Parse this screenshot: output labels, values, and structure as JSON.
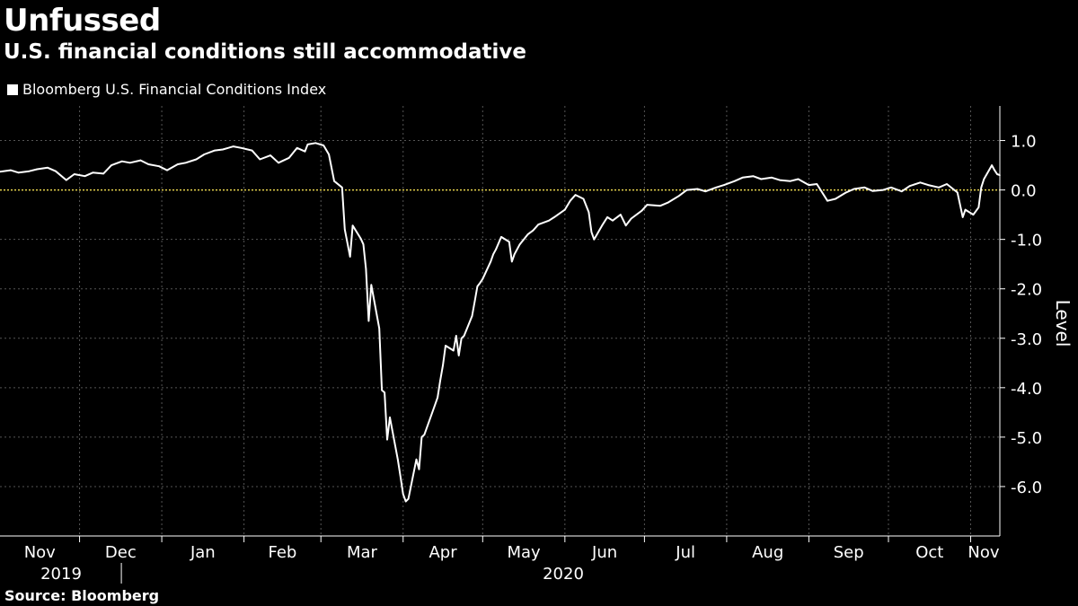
{
  "header": {
    "title": "Unfussed",
    "subtitle": "U.S. financial conditions still accommodative"
  },
  "legend": {
    "label": "Bloomberg U.S. Financial Conditions Index"
  },
  "footer": {
    "source": "Source: Bloomberg"
  },
  "colors": {
    "background": "#000000",
    "line": "#ffffff",
    "zero_line": "#e8d44d",
    "grid": "#555555"
  },
  "chart_data": {
    "type": "line",
    "title": "Unfussed",
    "subtitle": "U.S. financial conditions still accommodative",
    "ylabel": "Level",
    "ylim": [
      -7.0,
      1.7
    ],
    "yticks": [
      1.0,
      0.0,
      -1.0,
      -2.0,
      -3.0,
      -4.0,
      -5.0,
      -6.0
    ],
    "ytick_labels": [
      "1.0",
      "0.0",
      "-1.0",
      "-2.0",
      "-3.0",
      "-4.0",
      "-5.0",
      "-6.0"
    ],
    "x_months": [
      "Nov",
      "Dec",
      "Jan",
      "Feb",
      "Mar",
      "Apr",
      "May",
      "Jun",
      "Jul",
      "Aug",
      "Sep",
      "Oct",
      "Nov"
    ],
    "x_years": [
      "2019",
      "2020"
    ],
    "x_range": [
      "2019-11-01",
      "2020-11-12"
    ],
    "legend_position": "top-left",
    "grid": true,
    "reference_line": {
      "y": 0.0,
      "style": "dotted"
    },
    "series": [
      {
        "name": "Bloomberg U.S. Financial Conditions Index",
        "points": [
          [
            "2019-11-01",
            0.37
          ],
          [
            "2019-11-05",
            0.4
          ],
          [
            "2019-11-08",
            0.35
          ],
          [
            "2019-11-12",
            0.38
          ],
          [
            "2019-11-15",
            0.42
          ],
          [
            "2019-11-19",
            0.45
          ],
          [
            "2019-11-22",
            0.38
          ],
          [
            "2019-11-26",
            0.2
          ],
          [
            "2019-11-29",
            0.32
          ],
          [
            "2019-12-03",
            0.28
          ],
          [
            "2019-12-06",
            0.35
          ],
          [
            "2019-12-10",
            0.33
          ],
          [
            "2019-12-13",
            0.5
          ],
          [
            "2019-12-17",
            0.58
          ],
          [
            "2019-12-20",
            0.55
          ],
          [
            "2019-12-24",
            0.6
          ],
          [
            "2019-12-27",
            0.52
          ],
          [
            "2019-12-31",
            0.48
          ],
          [
            "2020-01-03",
            0.4
          ],
          [
            "2020-01-07",
            0.52
          ],
          [
            "2020-01-10",
            0.55
          ],
          [
            "2020-01-14",
            0.62
          ],
          [
            "2020-01-17",
            0.72
          ],
          [
            "2020-01-21",
            0.8
          ],
          [
            "2020-01-24",
            0.82
          ],
          [
            "2020-01-28",
            0.88
          ],
          [
            "2020-01-31",
            0.85
          ],
          [
            "2020-02-04",
            0.8
          ],
          [
            "2020-02-07",
            0.62
          ],
          [
            "2020-02-11",
            0.7
          ],
          [
            "2020-02-14",
            0.55
          ],
          [
            "2020-02-18",
            0.65
          ],
          [
            "2020-02-21",
            0.85
          ],
          [
            "2020-02-24",
            0.78
          ],
          [
            "2020-02-25",
            0.92
          ],
          [
            "2020-02-28",
            0.95
          ],
          [
            "2020-03-02",
            0.9
          ],
          [
            "2020-03-04",
            0.72
          ],
          [
            "2020-03-06",
            0.18
          ],
          [
            "2020-03-09",
            0.05
          ],
          [
            "2020-03-10",
            -0.8
          ],
          [
            "2020-03-12",
            -1.35
          ],
          [
            "2020-03-13",
            -0.72
          ],
          [
            "2020-03-16",
            -0.98
          ],
          [
            "2020-03-17",
            -1.1
          ],
          [
            "2020-03-18",
            -1.6
          ],
          [
            "2020-03-19",
            -2.65
          ],
          [
            "2020-03-20",
            -1.92
          ],
          [
            "2020-03-23",
            -2.8
          ],
          [
            "2020-03-24",
            -4.05
          ],
          [
            "2020-03-25",
            -4.1
          ],
          [
            "2020-03-26",
            -5.05
          ],
          [
            "2020-03-27",
            -4.6
          ],
          [
            "2020-03-30",
            -5.45
          ],
          [
            "2020-03-31",
            -5.8
          ],
          [
            "2020-04-01",
            -6.15
          ],
          [
            "2020-04-02",
            -6.3
          ],
          [
            "2020-04-03",
            -6.25
          ],
          [
            "2020-04-06",
            -5.45
          ],
          [
            "2020-04-07",
            -5.65
          ],
          [
            "2020-04-08",
            -5.0
          ],
          [
            "2020-04-09",
            -4.95
          ],
          [
            "2020-04-13",
            -4.35
          ],
          [
            "2020-04-14",
            -4.2
          ],
          [
            "2020-04-15",
            -3.85
          ],
          [
            "2020-04-16",
            -3.55
          ],
          [
            "2020-04-17",
            -3.15
          ],
          [
            "2020-04-20",
            -3.25
          ],
          [
            "2020-04-21",
            -2.95
          ],
          [
            "2020-04-22",
            -3.35
          ],
          [
            "2020-04-23",
            -3.0
          ],
          [
            "2020-04-24",
            -2.95
          ],
          [
            "2020-04-27",
            -2.55
          ],
          [
            "2020-04-28",
            -2.25
          ],
          [
            "2020-04-29",
            -1.95
          ],
          [
            "2020-04-30",
            -1.88
          ],
          [
            "2020-05-01",
            -1.8
          ],
          [
            "2020-05-04",
            -1.45
          ],
          [
            "2020-05-05",
            -1.3
          ],
          [
            "2020-05-06",
            -1.2
          ],
          [
            "2020-05-08",
            -0.95
          ],
          [
            "2020-05-11",
            -1.05
          ],
          [
            "2020-05-12",
            -1.45
          ],
          [
            "2020-05-13",
            -1.3
          ],
          [
            "2020-05-15",
            -1.1
          ],
          [
            "2020-05-18",
            -0.9
          ],
          [
            "2020-05-20",
            -0.82
          ],
          [
            "2020-05-22",
            -0.7
          ],
          [
            "2020-05-26",
            -0.62
          ],
          [
            "2020-05-28",
            -0.55
          ],
          [
            "2020-06-01",
            -0.4
          ],
          [
            "2020-06-03",
            -0.22
          ],
          [
            "2020-06-05",
            -0.1
          ],
          [
            "2020-06-08",
            -0.18
          ],
          [
            "2020-06-10",
            -0.45
          ],
          [
            "2020-06-11",
            -0.85
          ],
          [
            "2020-06-12",
            -1.0
          ],
          [
            "2020-06-15",
            -0.72
          ],
          [
            "2020-06-17",
            -0.55
          ],
          [
            "2020-06-19",
            -0.62
          ],
          [
            "2020-06-22",
            -0.5
          ],
          [
            "2020-06-24",
            -0.72
          ],
          [
            "2020-06-26",
            -0.58
          ],
          [
            "2020-06-30",
            -0.42
          ],
          [
            "2020-07-02",
            -0.3
          ],
          [
            "2020-07-07",
            -0.32
          ],
          [
            "2020-07-10",
            -0.25
          ],
          [
            "2020-07-14",
            -0.12
          ],
          [
            "2020-07-17",
            0.0
          ],
          [
            "2020-07-21",
            0.02
          ],
          [
            "2020-07-24",
            -0.03
          ],
          [
            "2020-07-28",
            0.05
          ],
          [
            "2020-07-31",
            0.1
          ],
          [
            "2020-08-04",
            0.18
          ],
          [
            "2020-08-07",
            0.25
          ],
          [
            "2020-08-11",
            0.28
          ],
          [
            "2020-08-14",
            0.22
          ],
          [
            "2020-08-18",
            0.25
          ],
          [
            "2020-08-21",
            0.2
          ],
          [
            "2020-08-25",
            0.18
          ],
          [
            "2020-08-28",
            0.22
          ],
          [
            "2020-09-01",
            0.1
          ],
          [
            "2020-09-04",
            0.12
          ],
          [
            "2020-09-08",
            -0.22
          ],
          [
            "2020-09-11",
            -0.18
          ],
          [
            "2020-09-15",
            -0.05
          ],
          [
            "2020-09-18",
            0.02
          ],
          [
            "2020-09-22",
            0.05
          ],
          [
            "2020-09-25",
            -0.02
          ],
          [
            "2020-09-29",
            0.0
          ],
          [
            "2020-10-02",
            0.05
          ],
          [
            "2020-10-06",
            -0.03
          ],
          [
            "2020-10-09",
            0.08
          ],
          [
            "2020-10-13",
            0.15
          ],
          [
            "2020-10-16",
            0.1
          ],
          [
            "2020-10-20",
            0.05
          ],
          [
            "2020-10-23",
            0.12
          ],
          [
            "2020-10-27",
            -0.05
          ],
          [
            "2020-10-29",
            -0.55
          ],
          [
            "2020-10-30",
            -0.4
          ],
          [
            "2020-11-02",
            -0.5
          ],
          [
            "2020-11-04",
            -0.35
          ],
          [
            "2020-11-05",
            0.05
          ],
          [
            "2020-11-06",
            0.22
          ],
          [
            "2020-11-09",
            0.5
          ],
          [
            "2020-11-10",
            0.4
          ],
          [
            "2020-11-11",
            0.32
          ],
          [
            "2020-11-12",
            0.3
          ]
        ]
      }
    ]
  }
}
